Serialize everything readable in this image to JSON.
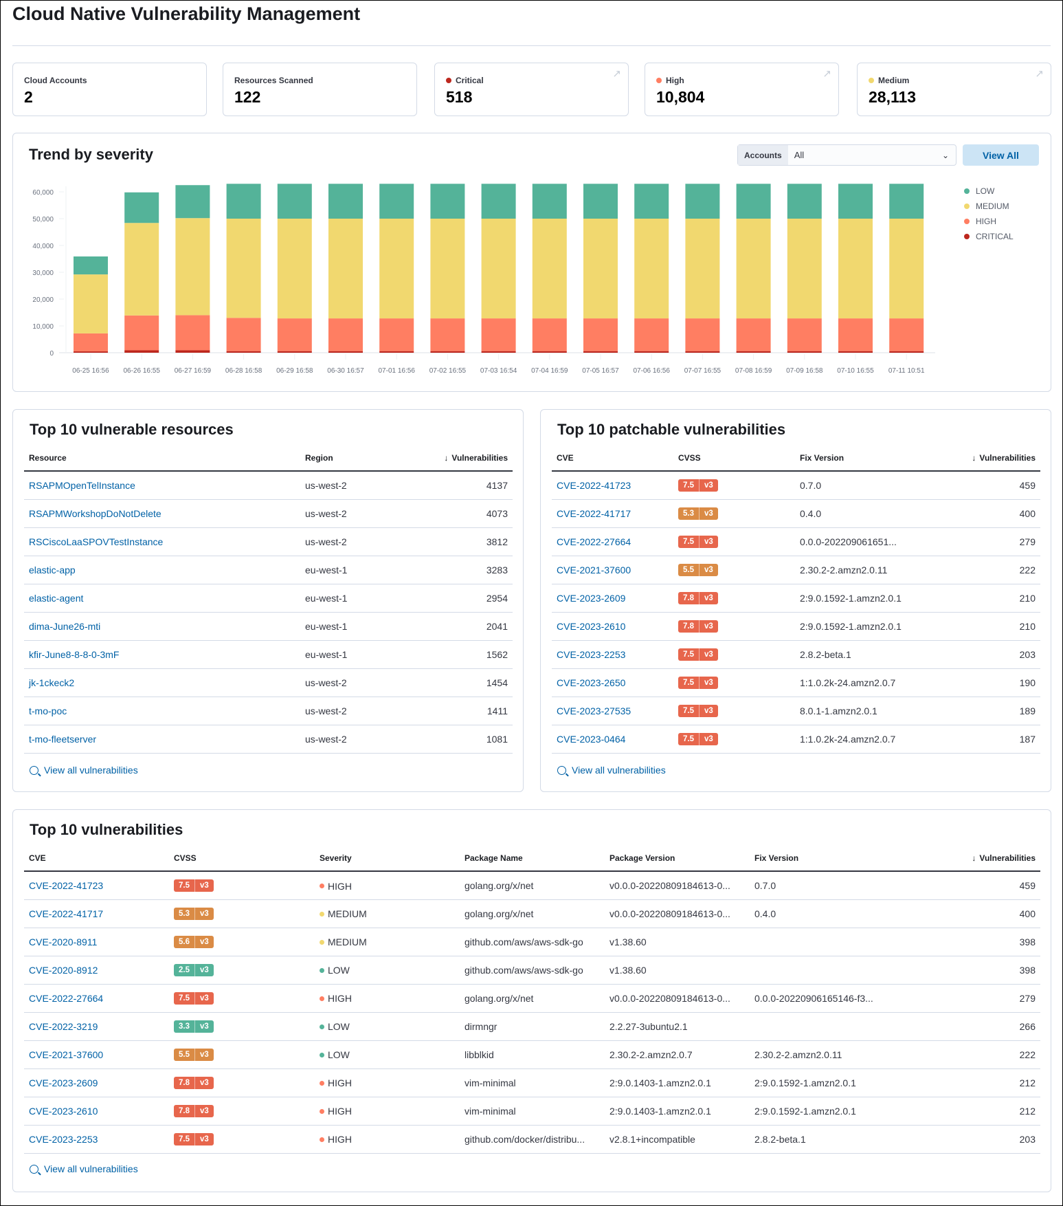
{
  "page": {
    "title": "Cloud Native Vulnerability Management"
  },
  "stats": [
    {
      "label": "Cloud Accounts",
      "value": "2"
    },
    {
      "label": "Resources Scanned",
      "value": "122"
    },
    {
      "label": "Critical",
      "value": "518",
      "color": "#bd271e"
    },
    {
      "label": "High",
      "value": "10,804",
      "color": "#ff7e62"
    },
    {
      "label": "Medium",
      "value": "28,113",
      "color": "#f1d86f"
    }
  ],
  "trend": {
    "title": "Trend by severity",
    "accounts_label": "Accounts",
    "accounts_value": "All",
    "view_all": "View All"
  },
  "chart_data": {
    "type": "bar",
    "stacked": true,
    "title": "",
    "xlabel": "",
    "ylabel": "",
    "ylim": [
      0,
      60000
    ],
    "yticks": [
      "0",
      "10,000",
      "20,000",
      "30,000",
      "40,000",
      "50,000",
      "60,000"
    ],
    "legend_position": "right",
    "categories": [
      "06-25 16:56",
      "06-26 16:55",
      "06-27 16:59",
      "06-28 16:58",
      "06-29 16:58",
      "06-30 16:57",
      "07-01 16:56",
      "07-02 16:55",
      "07-03 16:54",
      "07-04 16:59",
      "07-05 16:57",
      "07-06 16:56",
      "07-07 16:55",
      "07-08 16:59",
      "07-09 16:58",
      "07-10 16:55",
      "07-11 10:51"
    ],
    "series": [
      {
        "name": "CRITICAL",
        "color": "#bd271e",
        "values": [
          500,
          900,
          900,
          600,
          600,
          600,
          600,
          600,
          600,
          600,
          600,
          600,
          600,
          600,
          600,
          600,
          600
        ]
      },
      {
        "name": "HIGH",
        "color": "#ff7e62",
        "values": [
          6700,
          13000,
          13100,
          12400,
          12200,
          12200,
          12200,
          12200,
          12200,
          12200,
          12200,
          12200,
          12200,
          12200,
          12200,
          12200,
          12200
        ]
      },
      {
        "name": "MEDIUM",
        "color": "#f1d86f",
        "values": [
          22000,
          34500,
          36200,
          37000,
          37200,
          37200,
          37200,
          37200,
          37200,
          37200,
          37200,
          37200,
          37200,
          37200,
          37200,
          37200,
          37200
        ]
      },
      {
        "name": "LOW",
        "color": "#54b399",
        "values": [
          6700,
          11400,
          12300,
          13000,
          13000,
          13000,
          13000,
          13000,
          13000,
          13000,
          13000,
          13000,
          13000,
          13000,
          13000,
          13000,
          13000
        ]
      }
    ],
    "legend": [
      "LOW",
      "MEDIUM",
      "HIGH",
      "CRITICAL"
    ]
  },
  "resources": {
    "title": "Top 10 vulnerable resources",
    "columns": [
      "Resource",
      "Region",
      "Vulnerabilities"
    ],
    "rows": [
      [
        "RSAPMOpenTelInstance",
        "us-west-2",
        "4137"
      ],
      [
        "RSAPMWorkshopDoNotDelete",
        "us-west-2",
        "4073"
      ],
      [
        "RSCiscoLaaSPOVTestInstance",
        "us-west-2",
        "3812"
      ],
      [
        "elastic-app",
        "eu-west-1",
        "3283"
      ],
      [
        "elastic-agent",
        "eu-west-1",
        "2954"
      ],
      [
        "dima-June26-mti",
        "eu-west-1",
        "2041"
      ],
      [
        "kfir-June8-8-8-0-3mF",
        "eu-west-1",
        "1562"
      ],
      [
        "jk-1ckeck2",
        "us-west-2",
        "1454"
      ],
      [
        "t-mo-poc",
        "us-west-2",
        "1411"
      ],
      [
        "t-mo-fleetserver",
        "us-west-2",
        "1081"
      ]
    ],
    "view_all": "View all vulnerabilities"
  },
  "patchable": {
    "title": "Top 10 patchable vulnerabilities",
    "columns": [
      "CVE",
      "CVSS",
      "Fix Version",
      "Vulnerabilities"
    ],
    "rows": [
      [
        "CVE-2022-41723",
        "7.5",
        "v3",
        "0.7.0",
        "459"
      ],
      [
        "CVE-2022-41717",
        "5.3",
        "v3",
        "0.4.0",
        "400"
      ],
      [
        "CVE-2022-27664",
        "7.5",
        "v3",
        "0.0.0-202209061651...",
        "279"
      ],
      [
        "CVE-2021-37600",
        "5.5",
        "v3",
        "2.30.2-2.amzn2.0.11",
        "222"
      ],
      [
        "CVE-2023-2609",
        "7.8",
        "v3",
        "2:9.0.1592-1.amzn2.0.1",
        "210"
      ],
      [
        "CVE-2023-2610",
        "7.8",
        "v3",
        "2:9.0.1592-1.amzn2.0.1",
        "210"
      ],
      [
        "CVE-2023-2253",
        "7.5",
        "v3",
        "2.8.2-beta.1",
        "203"
      ],
      [
        "CVE-2023-2650",
        "7.5",
        "v3",
        "1:1.0.2k-24.amzn2.0.7",
        "190"
      ],
      [
        "CVE-2023-27535",
        "7.5",
        "v3",
        "8.0.1-1.amzn2.0.1",
        "189"
      ],
      [
        "CVE-2023-0464",
        "7.5",
        "v3",
        "1:1.0.2k-24.amzn2.0.7",
        "187"
      ]
    ],
    "view_all": "View all vulnerabilities"
  },
  "top": {
    "title": "Top 10 vulnerabilities",
    "columns": [
      "CVE",
      "CVSS",
      "Severity",
      "Package Name",
      "Package Version",
      "Fix Version",
      "Vulnerabilities"
    ],
    "rows": [
      [
        "CVE-2022-41723",
        "7.5",
        "v3",
        "HIGH",
        "golang.org/x/net",
        "v0.0.0-20220809184613-0...",
        "0.7.0",
        "459"
      ],
      [
        "CVE-2022-41717",
        "5.3",
        "v3",
        "MEDIUM",
        "golang.org/x/net",
        "v0.0.0-20220809184613-0...",
        "0.4.0",
        "400"
      ],
      [
        "CVE-2020-8911",
        "5.6",
        "v3",
        "MEDIUM",
        "github.com/aws/aws-sdk-go",
        "v1.38.60",
        "",
        "398"
      ],
      [
        "CVE-2020-8912",
        "2.5",
        "v3",
        "LOW",
        "github.com/aws/aws-sdk-go",
        "v1.38.60",
        "",
        "398"
      ],
      [
        "CVE-2022-27664",
        "7.5",
        "v3",
        "HIGH",
        "golang.org/x/net",
        "v0.0.0-20220809184613-0...",
        "0.0.0-20220906165146-f3...",
        "279"
      ],
      [
        "CVE-2022-3219",
        "3.3",
        "v3",
        "LOW",
        "dirmngr",
        "2.2.27-3ubuntu2.1",
        "",
        "266"
      ],
      [
        "CVE-2021-37600",
        "5.5",
        "v3",
        "LOW",
        "libblkid",
        "2.30.2-2.amzn2.0.7",
        "2.30.2-2.amzn2.0.11",
        "222"
      ],
      [
        "CVE-2023-2609",
        "7.8",
        "v3",
        "HIGH",
        "vim-minimal",
        "2:9.0.1403-1.amzn2.0.1",
        "2:9.0.1592-1.amzn2.0.1",
        "212"
      ],
      [
        "CVE-2023-2610",
        "7.8",
        "v3",
        "HIGH",
        "vim-minimal",
        "2:9.0.1403-1.amzn2.0.1",
        "2:9.0.1592-1.amzn2.0.1",
        "212"
      ],
      [
        "CVE-2023-2253",
        "7.5",
        "v3",
        "HIGH",
        "github.com/docker/distribu...",
        "v2.8.1+incompatible",
        "2.8.2-beta.1",
        "203"
      ]
    ],
    "view_all": "View all vulnerabilities"
  },
  "colors": {
    "link": "#0061a6",
    "badge_high": "#e7664c",
    "badge_medium": "#da8b45",
    "badge_low": "#54b399",
    "sev_high": "#ff7e62",
    "sev_medium": "#f1d86f",
    "sev_low": "#54b399"
  }
}
